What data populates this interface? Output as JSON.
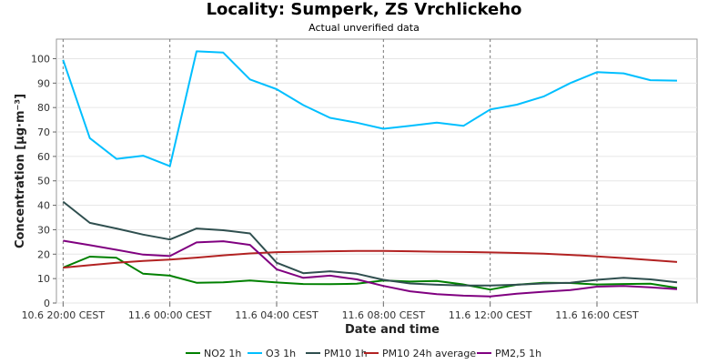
{
  "chart_data": {
    "type": "line",
    "title": "Locality: Sumperk, ZS Vrchlickeho",
    "subtitle": "Actual unverified data",
    "xlabel": "Date and time",
    "ylabel": "Concentration [µg·m⁻³]",
    "ylim": [
      0,
      108
    ],
    "yticks": [
      0,
      10,
      20,
      30,
      40,
      50,
      60,
      70,
      80,
      90,
      100
    ],
    "xlim": [
      -0.25,
      23.75
    ],
    "xticks": [
      {
        "x": 0,
        "label": "10.6 20:00 CEST"
      },
      {
        "x": 4,
        "label": "11.6 00:00 CEST"
      },
      {
        "x": 8,
        "label": "11.6 04:00 CEST"
      },
      {
        "x": 12,
        "label": "11.6 08:00 CEST"
      },
      {
        "x": 16,
        "label": "11.6 12:00 CEST"
      },
      {
        "x": 20,
        "label": "11.6 16:00 CEST"
      }
    ],
    "grid": true,
    "legend_position": "bottom",
    "x": [
      "10.6 20:00",
      "10.6 21:00",
      "10.6 22:00",
      "10.6 23:00",
      "11.6 00:00",
      "11.6 01:00",
      "11.6 02:00",
      "11.6 03:00",
      "11.6 04:00",
      "11.6 05:00",
      "11.6 06:00",
      "11.6 07:00",
      "11.6 08:00",
      "11.6 09:00",
      "11.6 10:00",
      "11.6 11:00",
      "11.6 12:00",
      "11.6 13:00",
      "11.6 14:00",
      "11.6 15:00",
      "11.6 16:00",
      "11.6 17:00",
      "11.6 18:00",
      "11.6 19:00"
    ],
    "series": [
      {
        "name": "NO2 1h",
        "color": "#008000",
        "values": [
          14.5,
          19,
          18.5,
          12,
          11.2,
          8.3,
          8.5,
          9.2,
          8.4,
          7.8,
          7.7,
          7.9,
          9.2,
          8.8,
          9,
          7.6,
          5.5,
          7.5,
          8.3,
          8.2,
          7.6,
          7.8,
          7.9,
          6.2
        ]
      },
      {
        "name": "O3 1h",
        "color": "#00bfff",
        "values": [
          99.5,
          67.5,
          59,
          60.3,
          56,
          103,
          102.5,
          91.5,
          87.5,
          81,
          75.8,
          73.8,
          71.3,
          72.5,
          73.8,
          72.5,
          79.2,
          81.2,
          84.5,
          90,
          94.5,
          94,
          91.2,
          91
        ]
      },
      {
        "name": "PM10 1h",
        "color": "#2f4f4f",
        "values": [
          41.5,
          32.8,
          30.5,
          28,
          26,
          30.5,
          29.8,
          28.5,
          16.5,
          12.2,
          13,
          12,
          9.5,
          8,
          7.5,
          7.2,
          7.2,
          7.5,
          8,
          8.3,
          9.5,
          10.3,
          9.7,
          8.5
        ]
      },
      {
        "name": "PM10 24h average",
        "color": "#b22222",
        "values": [
          14.5,
          15.5,
          16.5,
          17.2,
          17.8,
          18.6,
          19.5,
          20.3,
          20.8,
          21,
          21.2,
          21.3,
          21.3,
          21.2,
          21,
          20.9,
          20.7,
          20.5,
          20.2,
          19.7,
          19.1,
          18.4,
          17.6,
          16.8
        ]
      },
      {
        "name": "PM2,5 1h",
        "color": "#800080",
        "values": [
          25.5,
          23.7,
          21.8,
          19.8,
          19.2,
          24.8,
          25.3,
          23.8,
          13.8,
          10.3,
          11.2,
          9.7,
          7,
          4.8,
          3.6,
          3,
          2.7,
          3.8,
          4.6,
          5.3,
          6.7,
          7,
          6.4,
          5.7
        ]
      }
    ]
  }
}
